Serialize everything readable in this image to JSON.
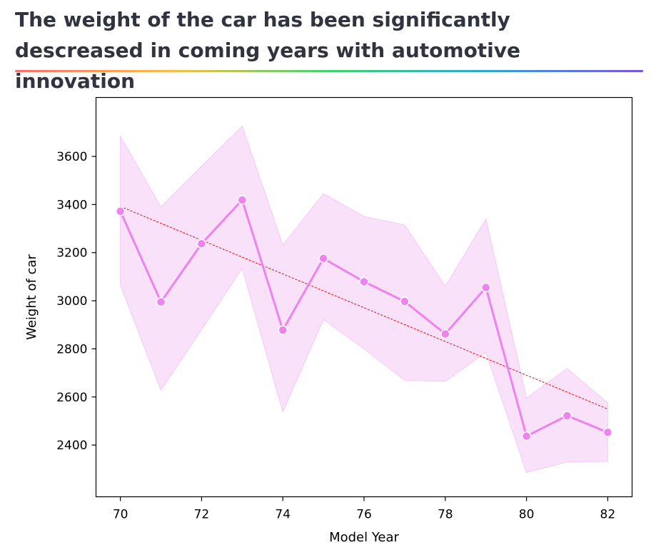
{
  "page": {
    "title": "The weight of the car has been significantly descreased in coming years with automotive innovation"
  },
  "chart_data": {
    "type": "line",
    "title": "",
    "xlabel": "Model Year",
    "ylabel": "Weight of car",
    "xlim": [
      69.4,
      82.6
    ],
    "ylim": [
      2185,
      3845
    ],
    "xticks": [
      70,
      72,
      74,
      76,
      78,
      80,
      82
    ],
    "yticks": [
      2400,
      2600,
      2800,
      3000,
      3200,
      3400,
      3600
    ],
    "grid": false,
    "legend": "none",
    "series": [
      {
        "x": [
          70,
          71,
          72,
          73,
          74,
          75,
          76,
          77,
          78,
          79,
          80,
          81,
          82
        ],
        "y": [
          3372,
          2995,
          3237,
          3419,
          2878,
          3176,
          3079,
          2997,
          2862,
          3055,
          2437,
          2522,
          2453
        ],
        "ci_upper": [
          3685,
          3390,
          3560,
          3725,
          3232,
          3445,
          3350,
          3315,
          3060,
          3340,
          2595,
          2718,
          2575
        ],
        "ci_lower": [
          3065,
          2628,
          2880,
          3135,
          2538,
          2922,
          2800,
          2670,
          2665,
          2785,
          2286,
          2330,
          2332
        ],
        "color": "#ee82ee",
        "band_color": "#f9dcf9",
        "marker": "circle"
      }
    ],
    "trendline": {
      "x": [
        70,
        82
      ],
      "y": [
        3392,
        2550
      ],
      "color": "#ff0000",
      "style": "dashed"
    }
  }
}
